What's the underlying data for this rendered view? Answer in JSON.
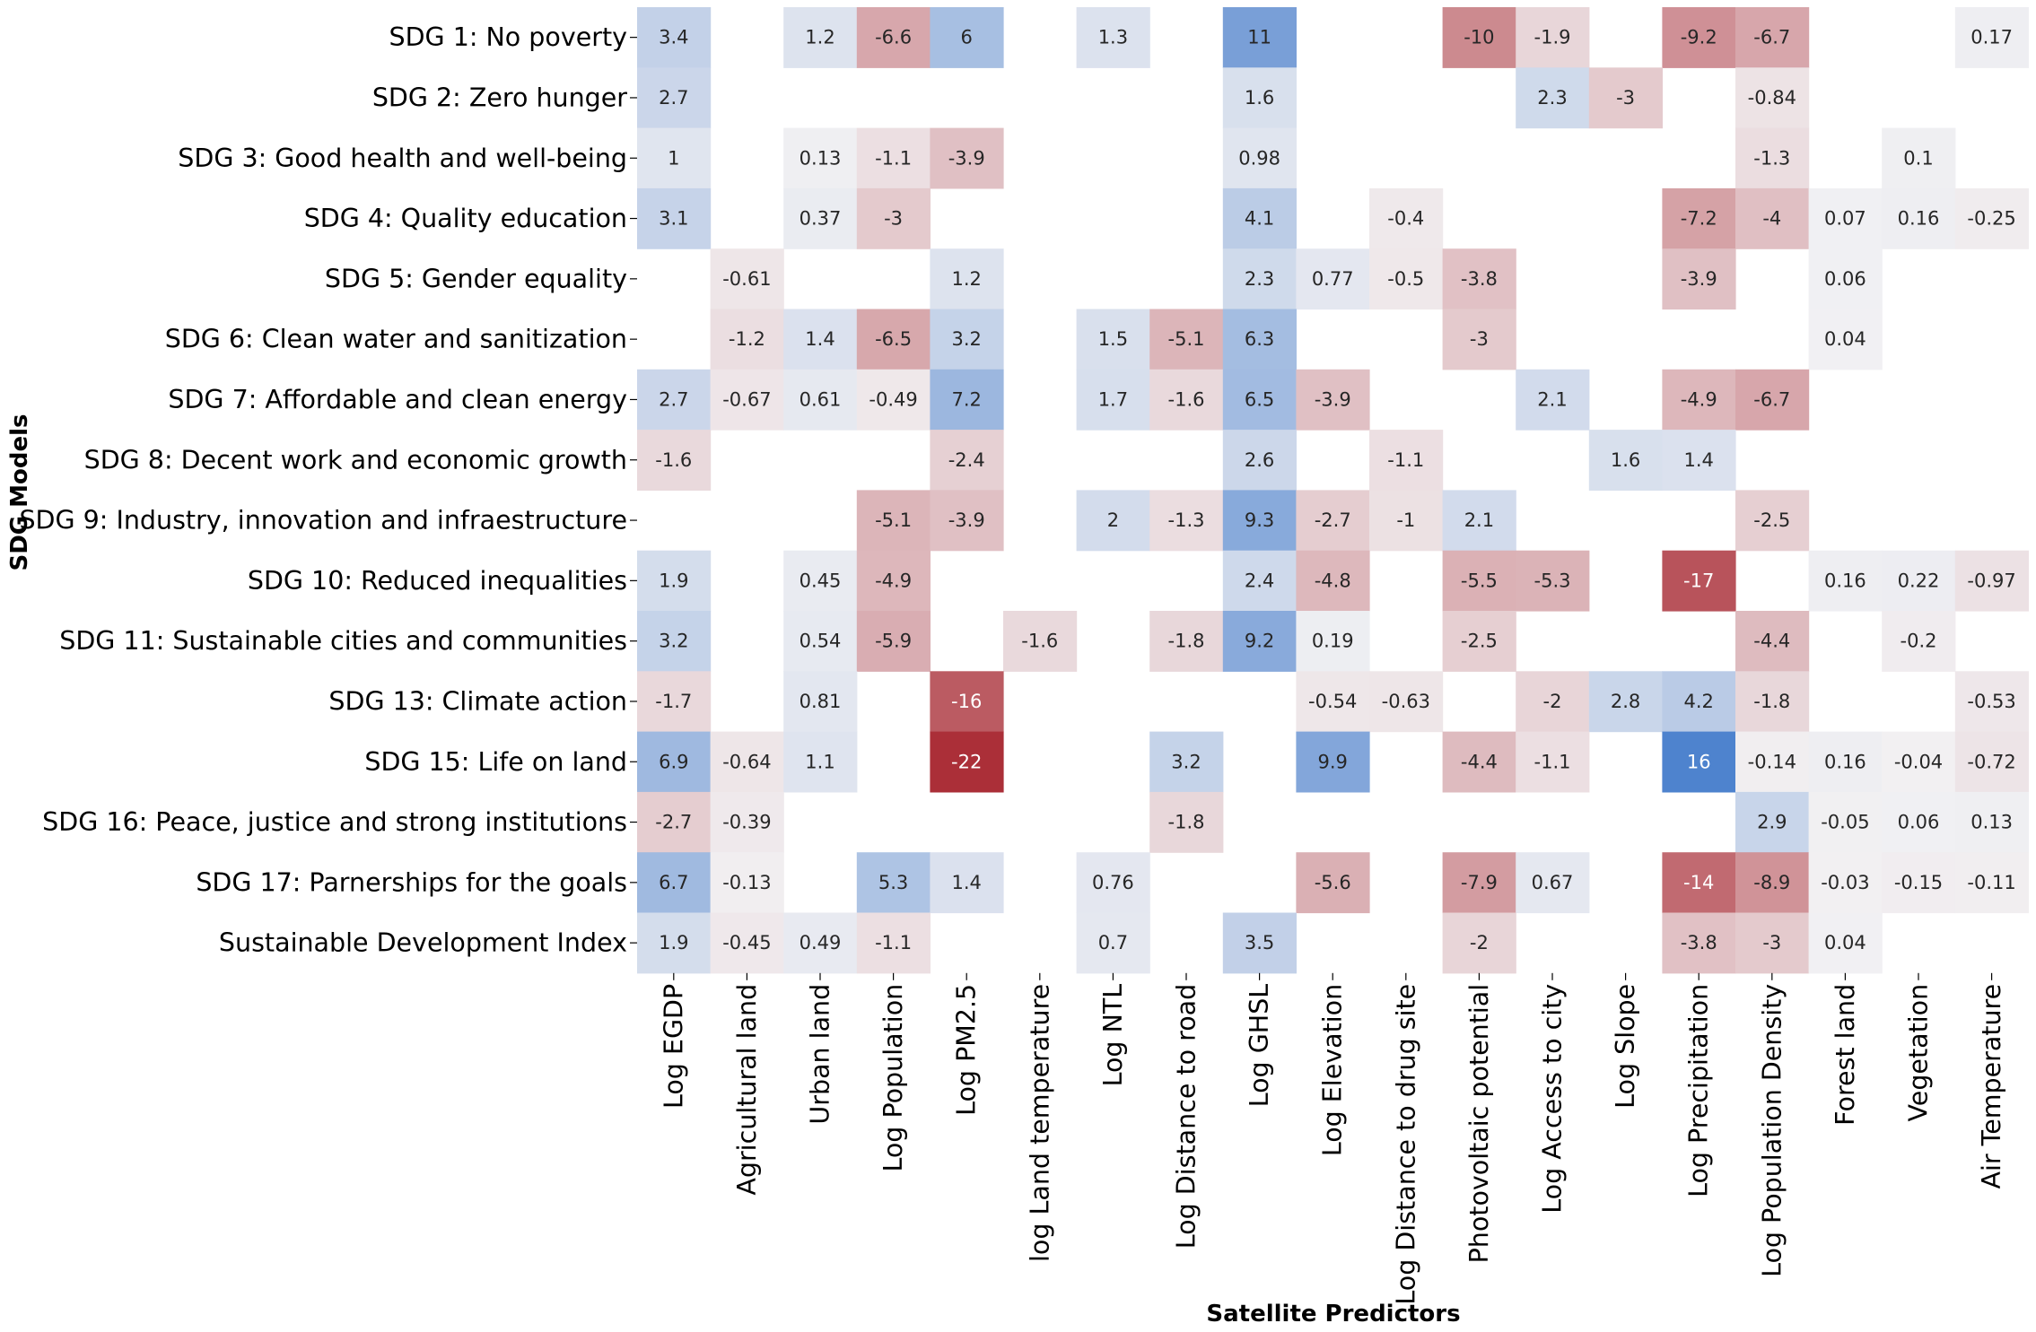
{
  "chart_data": {
    "type": "heatmap",
    "xlabel": "Satellite Predictors",
    "ylabel": "SDG Models",
    "rows": [
      "SDG 1: No poverty",
      "SDG 2: Zero hunger",
      "SDG 3: Good health and well-being",
      "SDG 4: Quality education",
      "SDG 5: Gender equality",
      "SDG 6: Clean water and sanitization",
      "SDG 7: Affordable and clean energy",
      "SDG 8: Decent work and economic growth",
      "SDG 9: Industry, innovation and infraestructure",
      "SDG 10: Reduced inequalities",
      "SDG 11: Sustainable cities and communities",
      "SDG 13: Climate action",
      "SDG 15: Life on land",
      "SDG 16: Peace, justice and strong institutions",
      "SDG 17: Parnerships for the goals",
      "Sustainable Development Index"
    ],
    "columns": [
      "Log EGDP",
      "Agricultural land",
      "Urban land",
      "Log Population",
      "Log PM2.5",
      "log Land temperature",
      "Log NTL",
      "Log Distance to road",
      "Log GHSL",
      "Log Elevation",
      "Log Distance to drug site",
      "Photovoltaic potential",
      "Log Access to city",
      "Log Slope",
      "Log Precipitation",
      "Log Population Density",
      "Forest land",
      "Vegetation",
      "Air Temperature"
    ],
    "values": [
      [
        3.4,
        null,
        1.2,
        -6.6,
        6,
        null,
        1.3,
        null,
        11,
        null,
        null,
        -10,
        -1.9,
        null,
        -9.2,
        -6.7,
        null,
        null,
        0.17
      ],
      [
        2.7,
        null,
        null,
        null,
        null,
        null,
        null,
        null,
        1.6,
        null,
        null,
        null,
        2.3,
        -3,
        null,
        -0.84,
        null,
        null,
        null
      ],
      [
        1,
        null,
        0.13,
        -1.1,
        -3.9,
        null,
        null,
        null,
        0.98,
        null,
        null,
        null,
        null,
        null,
        null,
        -1.3,
        null,
        0.1,
        null
      ],
      [
        3.1,
        null,
        0.37,
        -3,
        null,
        null,
        null,
        null,
        4.1,
        null,
        -0.4,
        null,
        null,
        null,
        -7.2,
        -4,
        0.07,
        0.16,
        -0.25
      ],
      [
        null,
        -0.61,
        null,
        null,
        1.2,
        null,
        null,
        null,
        2.3,
        0.77,
        -0.5,
        -3.8,
        null,
        null,
        -3.9,
        null,
        0.06,
        null,
        null
      ],
      [
        null,
        -1.2,
        1.4,
        -6.5,
        3.2,
        null,
        1.5,
        -5.1,
        6.3,
        null,
        null,
        -3,
        null,
        null,
        null,
        null,
        0.04,
        null,
        null
      ],
      [
        2.7,
        -0.67,
        0.61,
        -0.49,
        7.2,
        null,
        1.7,
        -1.6,
        6.5,
        -3.9,
        null,
        null,
        2.1,
        null,
        -4.9,
        -6.7,
        null,
        null,
        null
      ],
      [
        -1.6,
        null,
        null,
        null,
        -2.4,
        null,
        null,
        null,
        2.6,
        null,
        -1.1,
        null,
        null,
        1.6,
        1.4,
        null,
        null,
        null,
        null
      ],
      [
        null,
        null,
        null,
        -5.1,
        -3.9,
        null,
        2,
        -1.3,
        9.3,
        -2.7,
        -1,
        2.1,
        null,
        null,
        null,
        -2.5,
        null,
        null,
        null
      ],
      [
        1.9,
        null,
        0.45,
        -4.9,
        null,
        null,
        null,
        null,
        2.4,
        -4.8,
        null,
        -5.5,
        -5.3,
        null,
        -17,
        null,
        0.16,
        0.22,
        -0.97
      ],
      [
        3.2,
        null,
        0.54,
        -5.9,
        null,
        -1.6,
        null,
        -1.8,
        9.2,
        0.19,
        null,
        -2.5,
        null,
        null,
        null,
        -4.4,
        null,
        -0.2,
        null
      ],
      [
        -1.7,
        null,
        0.81,
        null,
        -16,
        null,
        null,
        null,
        null,
        -0.54,
        -0.63,
        null,
        -2,
        2.8,
        4.2,
        -1.8,
        null,
        null,
        -0.53
      ],
      [
        6.9,
        -0.64,
        1.1,
        null,
        -22,
        null,
        null,
        3.2,
        null,
        9.9,
        null,
        -4.4,
        -1.1,
        null,
        16,
        -0.14,
        0.16,
        -0.04,
        -0.72
      ],
      [
        -2.7,
        -0.39,
        null,
        null,
        null,
        null,
        null,
        -1.8,
        null,
        null,
        null,
        null,
        null,
        null,
        null,
        2.9,
        -0.05,
        0.06,
        0.13
      ],
      [
        6.7,
        -0.13,
        null,
        5.3,
        1.4,
        null,
        0.76,
        null,
        null,
        -5.6,
        null,
        -7.9,
        0.67,
        null,
        -14,
        -8.9,
        -0.03,
        -0.15,
        -0.11
      ],
      [
        1.9,
        -0.45,
        0.49,
        -1.1,
        null,
        null,
        0.7,
        null,
        3.5,
        null,
        null,
        -2,
        null,
        null,
        -3.8,
        -3,
        0.04,
        null,
        null
      ]
    ],
    "colormap": {
      "negative_max": "#ab2f38",
      "center": "#f2f1f3",
      "positive_max": "#1f63c3",
      "range": [
        -22,
        22
      ]
    },
    "annotations": true,
    "grid": false,
    "legend": "none"
  }
}
